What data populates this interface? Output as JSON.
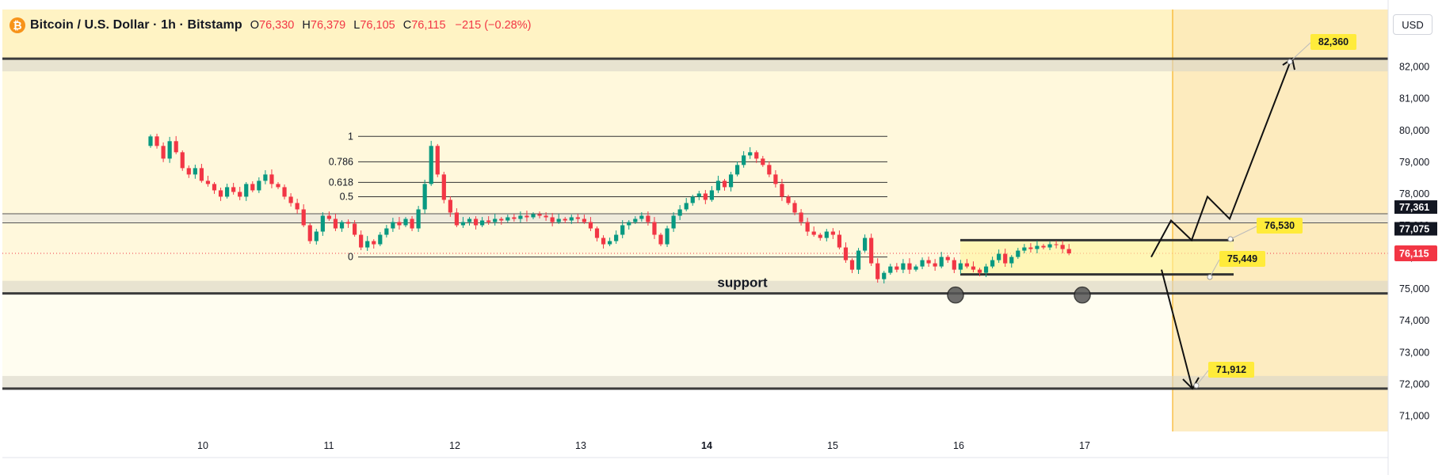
{
  "header": {
    "symbol": "Bitcoin / U.S. Dollar · 1h · Bitstamp",
    "ohlc": [
      {
        "key": "O",
        "value": "76,330"
      },
      {
        "key": "H",
        "value": "76,379"
      },
      {
        "key": "L",
        "value": "76,105"
      },
      {
        "key": "C",
        "value": "76,115"
      }
    ],
    "change": "−215 (−0.28%)",
    "currency": "USD"
  },
  "colors": {
    "up": "#089981",
    "down": "#f23645",
    "level_line": "#3b3b3b",
    "callout": "#ffeb3b",
    "background_band": "#fff8dc",
    "projection_zone": "#fde9b8",
    "last_price": "#f23645"
  },
  "chart_data": {
    "type": "candlestick",
    "instrument": "Bitcoin / U.S. Dollar",
    "interval": "1h",
    "exchange": "Bitstamp",
    "x_ticks": [
      "10",
      "11",
      "12",
      "13",
      "14",
      "15",
      "16",
      "17"
    ],
    "y_ticks": [
      "71,000",
      "72,000",
      "73,000",
      "74,000",
      "75,000",
      "76,000",
      "77,000",
      "78,000",
      "79,000",
      "80,000",
      "81,000",
      "82,000"
    ],
    "ylim": [
      70500,
      83800
    ],
    "last_price": {
      "value": 76115,
      "label": "76,115"
    },
    "price_tags": [
      {
        "value": 77361,
        "label": "77,361"
      },
      {
        "value": 77075,
        "label": "77,075"
      }
    ],
    "horizontal_levels": [
      {
        "value": 82250
      },
      {
        "value": 74850
      },
      {
        "value": 71850
      }
    ],
    "support_label": "support",
    "fibonacci": {
      "low": 76000,
      "high": 79800,
      "levels": [
        {
          "label": "1",
          "value": 79800
        },
        {
          "label": "0.786",
          "value": 79000
        },
        {
          "label": "0.618",
          "value": 78350
        },
        {
          "label": "0.5",
          "value": 77900
        },
        {
          "label": "0",
          "value": 76000
        }
      ]
    },
    "range_box": {
      "top": 76530,
      "bottom": 75449
    },
    "targets": [
      {
        "label": "82,360",
        "value": 82360
      },
      {
        "label": "76,530",
        "value": 76530
      },
      {
        "label": "75,449",
        "value": 75449
      },
      {
        "label": "71,912",
        "value": 71912
      }
    ],
    "projection_path_up": [
      76000,
      77150,
      76530,
      77900,
      77200,
      82250
    ],
    "projection_path_down": [
      75600,
      71850
    ],
    "closes": [
      79800,
      79500,
      79100,
      79650,
      79300,
      78800,
      78600,
      78800,
      78400,
      78300,
      78100,
      77900,
      78200,
      78050,
      77900,
      78300,
      78100,
      78400,
      78600,
      78300,
      78200,
      77900,
      77700,
      77500,
      77000,
      76500,
      76800,
      77300,
      77200,
      76900,
      77100,
      77050,
      76700,
      76300,
      76500,
      76400,
      76700,
      76900,
      77100,
      77000,
      77200,
      76900,
      77500,
      78300,
      79500,
      78600,
      77800,
      77400,
      77000,
      77100,
      77200,
      77000,
      77150,
      77100,
      77200,
      77150,
      77250,
      77200,
      77300,
      77250,
      77350,
      77300,
      77250,
      77100,
      77200,
      77150,
      77250,
      77200,
      77100,
      76900,
      76600,
      76400,
      76500,
      76700,
      77000,
      77100,
      77200,
      77300,
      77100,
      76700,
      76400,
      76900,
      77300,
      77500,
      77700,
      77900,
      78000,
      77800,
      78100,
      78400,
      78200,
      78600,
      78900,
      79200,
      79300,
      79100,
      78900,
      78600,
      78300,
      77900,
      77700,
      77400,
      77100,
      76800,
      76700,
      76600,
      76800,
      76700,
      76300,
      75900,
      75600,
      76200,
      76600,
      75800,
      75300,
      75500,
      75700,
      75600,
      75800,
      75600,
      75700,
      75900,
      75800,
      75700,
      76000,
      75900,
      75600,
      75800,
      75700,
      75600,
      75500,
      75700,
      75900,
      76100,
      75800,
      76000,
      76200,
      76300,
      76250,
      76350,
      76300,
      76400,
      76380,
      76250,
      76115
    ]
  }
}
